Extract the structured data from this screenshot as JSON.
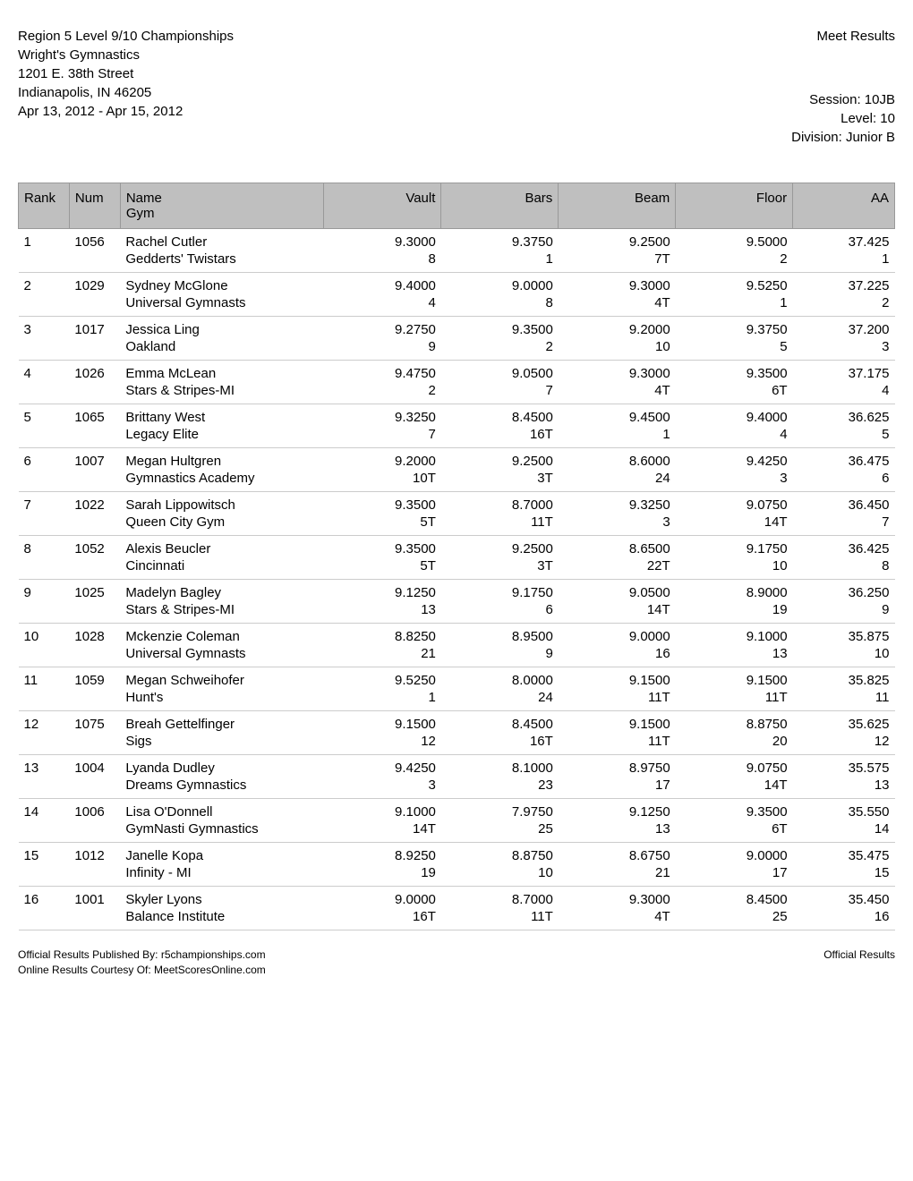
{
  "header": {
    "title": "Region 5 Level 9/10 Championships",
    "venue": "Wright's Gymnastics",
    "address": "1201 E. 38th Street",
    "citystate": "Indianapolis, IN 46205",
    "dates": "Apr 13, 2012 - Apr 15, 2012",
    "meet_results": "Meet Results",
    "session": "Session: 10JB",
    "level": "Level: 10",
    "division": "Division: Junior B"
  },
  "columns": {
    "rank": "Rank",
    "num": "Num",
    "name": "Name",
    "gym": "Gym",
    "vault": "Vault",
    "bars": "Bars",
    "beam": "Beam",
    "floor": "Floor",
    "aa": "AA"
  },
  "rows": [
    {
      "rank": "1",
      "num": "1056",
      "name": "Rachel Cutler",
      "gym": "Gedderts' Twistars",
      "vault": "9.3000",
      "vault_p": "8",
      "bars": "9.3750",
      "bars_p": "1",
      "beam": "9.2500",
      "beam_p": "7T",
      "floor": "9.5000",
      "floor_p": "2",
      "aa": "37.425",
      "aa_p": "1"
    },
    {
      "rank": "2",
      "num": "1029",
      "name": "Sydney McGlone",
      "gym": "Universal Gymnasts",
      "vault": "9.4000",
      "vault_p": "4",
      "bars": "9.0000",
      "bars_p": "8",
      "beam": "9.3000",
      "beam_p": "4T",
      "floor": "9.5250",
      "floor_p": "1",
      "aa": "37.225",
      "aa_p": "2"
    },
    {
      "rank": "3",
      "num": "1017",
      "name": "Jessica Ling",
      "gym": "Oakland",
      "vault": "9.2750",
      "vault_p": "9",
      "bars": "9.3500",
      "bars_p": "2",
      "beam": "9.2000",
      "beam_p": "10",
      "floor": "9.3750",
      "floor_p": "5",
      "aa": "37.200",
      "aa_p": "3"
    },
    {
      "rank": "4",
      "num": "1026",
      "name": "Emma McLean",
      "gym": "Stars & Stripes-MI",
      "vault": "9.4750",
      "vault_p": "2",
      "bars": "9.0500",
      "bars_p": "7",
      "beam": "9.3000",
      "beam_p": "4T",
      "floor": "9.3500",
      "floor_p": "6T",
      "aa": "37.175",
      "aa_p": "4"
    },
    {
      "rank": "5",
      "num": "1065",
      "name": "Brittany West",
      "gym": "Legacy Elite",
      "vault": "9.3250",
      "vault_p": "7",
      "bars": "8.4500",
      "bars_p": "16T",
      "beam": "9.4500",
      "beam_p": "1",
      "floor": "9.4000",
      "floor_p": "4",
      "aa": "36.625",
      "aa_p": "5"
    },
    {
      "rank": "6",
      "num": "1007",
      "name": "Megan Hultgren",
      "gym": "Gymnastics Academy",
      "vault": "9.2000",
      "vault_p": "10T",
      "bars": "9.2500",
      "bars_p": "3T",
      "beam": "8.6000",
      "beam_p": "24",
      "floor": "9.4250",
      "floor_p": "3",
      "aa": "36.475",
      "aa_p": "6"
    },
    {
      "rank": "7",
      "num": "1022",
      "name": "Sarah Lippowitsch",
      "gym": "Queen City Gym",
      "vault": "9.3500",
      "vault_p": "5T",
      "bars": "8.7000",
      "bars_p": "11T",
      "beam": "9.3250",
      "beam_p": "3",
      "floor": "9.0750",
      "floor_p": "14T",
      "aa": "36.450",
      "aa_p": "7"
    },
    {
      "rank": "8",
      "num": "1052",
      "name": "Alexis Beucler",
      "gym": "Cincinnati",
      "vault": "9.3500",
      "vault_p": "5T",
      "bars": "9.2500",
      "bars_p": "3T",
      "beam": "8.6500",
      "beam_p": "22T",
      "floor": "9.1750",
      "floor_p": "10",
      "aa": "36.425",
      "aa_p": "8"
    },
    {
      "rank": "9",
      "num": "1025",
      "name": "Madelyn Bagley",
      "gym": "Stars & Stripes-MI",
      "vault": "9.1250",
      "vault_p": "13",
      "bars": "9.1750",
      "bars_p": "6",
      "beam": "9.0500",
      "beam_p": "14T",
      "floor": "8.9000",
      "floor_p": "19",
      "aa": "36.250",
      "aa_p": "9"
    },
    {
      "rank": "10",
      "num": "1028",
      "name": "Mckenzie Coleman",
      "gym": "Universal Gymnasts",
      "vault": "8.8250",
      "vault_p": "21",
      "bars": "8.9500",
      "bars_p": "9",
      "beam": "9.0000",
      "beam_p": "16",
      "floor": "9.1000",
      "floor_p": "13",
      "aa": "35.875",
      "aa_p": "10"
    },
    {
      "rank": "11",
      "num": "1059",
      "name": "Megan Schweihofer",
      "gym": "Hunt's",
      "vault": "9.5250",
      "vault_p": "1",
      "bars": "8.0000",
      "bars_p": "24",
      "beam": "9.1500",
      "beam_p": "11T",
      "floor": "9.1500",
      "floor_p": "11T",
      "aa": "35.825",
      "aa_p": "11"
    },
    {
      "rank": "12",
      "num": "1075",
      "name": "Breah Gettelfinger",
      "gym": "Sigs",
      "vault": "9.1500",
      "vault_p": "12",
      "bars": "8.4500",
      "bars_p": "16T",
      "beam": "9.1500",
      "beam_p": "11T",
      "floor": "8.8750",
      "floor_p": "20",
      "aa": "35.625",
      "aa_p": "12"
    },
    {
      "rank": "13",
      "num": "1004",
      "name": "Lyanda Dudley",
      "gym": "Dreams Gymnastics",
      "vault": "9.4250",
      "vault_p": "3",
      "bars": "8.1000",
      "bars_p": "23",
      "beam": "8.9750",
      "beam_p": "17",
      "floor": "9.0750",
      "floor_p": "14T",
      "aa": "35.575",
      "aa_p": "13"
    },
    {
      "rank": "14",
      "num": "1006",
      "name": "Lisa O'Donnell",
      "gym": "GymNasti Gymnastics",
      "vault": "9.1000",
      "vault_p": "14T",
      "bars": "7.9750",
      "bars_p": "25",
      "beam": "9.1250",
      "beam_p": "13",
      "floor": "9.3500",
      "floor_p": "6T",
      "aa": "35.550",
      "aa_p": "14"
    },
    {
      "rank": "15",
      "num": "1012",
      "name": "Janelle Kopa",
      "gym": "Infinity - MI",
      "vault": "8.9250",
      "vault_p": "19",
      "bars": "8.8750",
      "bars_p": "10",
      "beam": "8.6750",
      "beam_p": "21",
      "floor": "9.0000",
      "floor_p": "17",
      "aa": "35.475",
      "aa_p": "15"
    },
    {
      "rank": "16",
      "num": "1001",
      "name": "Skyler Lyons",
      "gym": "Balance Institute",
      "vault": "9.0000",
      "vault_p": "16T",
      "bars": "8.7000",
      "bars_p": "11T",
      "beam": "9.3000",
      "beam_p": "4T",
      "floor": "8.4500",
      "floor_p": "25",
      "aa": "35.450",
      "aa_p": "16"
    }
  ],
  "footer": {
    "published": "Official Results Published By: r5championships.com",
    "courtesy": "Online Results Courtesy Of: MeetScoresOnline.com",
    "official": "Official Results"
  }
}
